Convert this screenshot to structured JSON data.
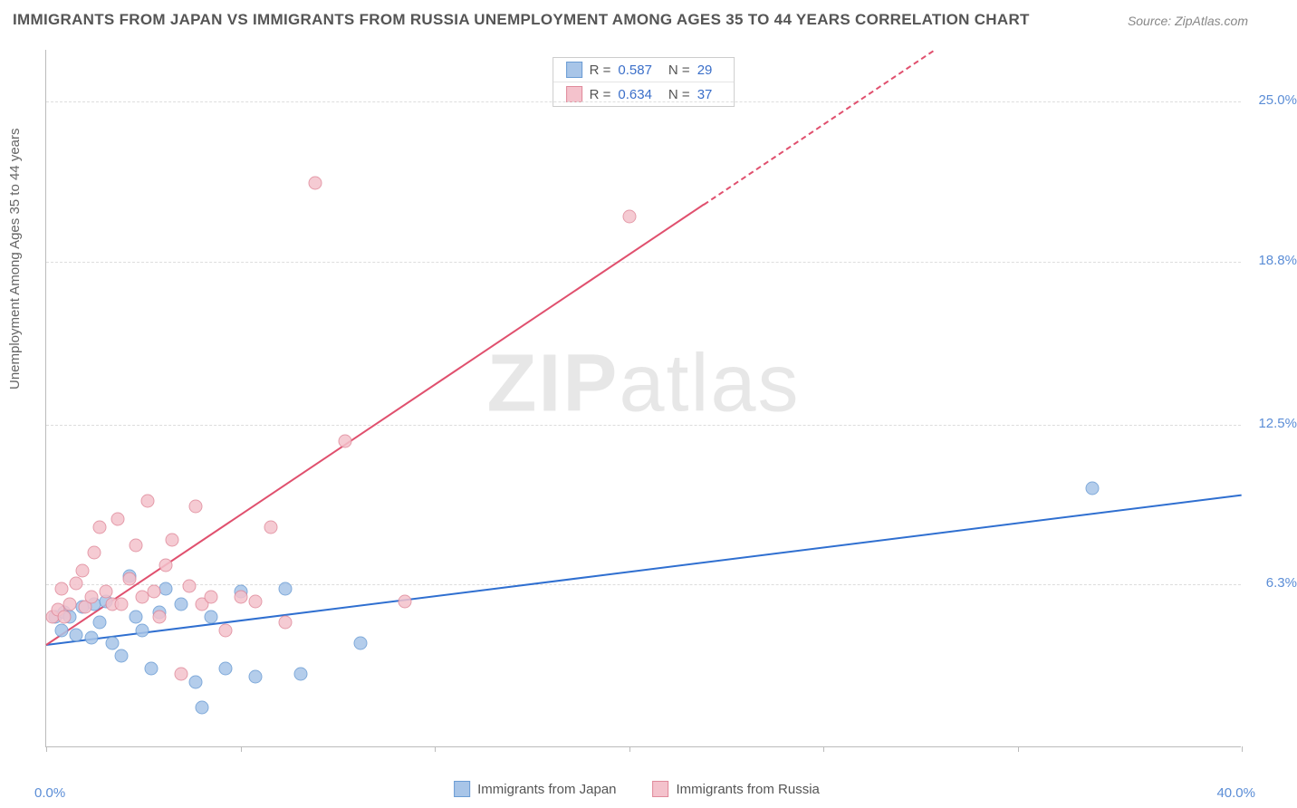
{
  "title": "IMMIGRANTS FROM JAPAN VS IMMIGRANTS FROM RUSSIA UNEMPLOYMENT AMONG AGES 35 TO 44 YEARS CORRELATION CHART",
  "source": "Source: ZipAtlas.com",
  "watermark_bold": "ZIP",
  "watermark_light": "atlas",
  "y_axis_label": "Unemployment Among Ages 35 to 44 years",
  "chart": {
    "type": "scatter",
    "xlim": [
      0,
      40
    ],
    "ylim": [
      0,
      27
    ],
    "x_min_label": "0.0%",
    "x_max_label": "40.0%",
    "x_ticks": [
      0,
      6.5,
      13,
      19.5,
      26,
      32.5,
      40
    ],
    "y_gridlines": [
      {
        "value": 6.3,
        "label": "6.3%"
      },
      {
        "value": 12.5,
        "label": "12.5%"
      },
      {
        "value": 18.8,
        "label": "18.8%"
      },
      {
        "value": 25.0,
        "label": "25.0%"
      }
    ],
    "grid_color": "#dddddd",
    "axis_color": "#bbbbbb",
    "background_color": "#ffffff",
    "series": [
      {
        "id": "japan",
        "label": "Immigrants from Japan",
        "fill_color": "#a8c5e8",
        "stroke_color": "#6a9cd4",
        "trend_color": "#2f6fd0",
        "R": "0.587",
        "N": "29",
        "trend": {
          "x1": 0,
          "y1": 4.0,
          "x2": 40,
          "y2": 9.8,
          "dashed_from_x": null
        },
        "points": [
          [
            0.3,
            5.0
          ],
          [
            0.5,
            4.5
          ],
          [
            0.6,
            5.2
          ],
          [
            0.8,
            5.0
          ],
          [
            1.0,
            4.3
          ],
          [
            1.2,
            5.4
          ],
          [
            1.5,
            4.2
          ],
          [
            1.6,
            5.5
          ],
          [
            1.8,
            4.8
          ],
          [
            2.0,
            5.6
          ],
          [
            2.2,
            4.0
          ],
          [
            2.5,
            3.5
          ],
          [
            2.8,
            6.6
          ],
          [
            3.0,
            5.0
          ],
          [
            3.2,
            4.5
          ],
          [
            3.5,
            3.0
          ],
          [
            3.8,
            5.2
          ],
          [
            4.0,
            6.1
          ],
          [
            4.5,
            5.5
          ],
          [
            5.0,
            2.5
          ],
          [
            5.2,
            1.5
          ],
          [
            5.5,
            5.0
          ],
          [
            6.0,
            3.0
          ],
          [
            6.5,
            6.0
          ],
          [
            7.0,
            2.7
          ],
          [
            8.0,
            6.1
          ],
          [
            8.5,
            2.8
          ],
          [
            10.5,
            4.0
          ],
          [
            35.0,
            10.0
          ]
        ]
      },
      {
        "id": "russia",
        "label": "Immigrants from Russia",
        "fill_color": "#f4c2cc",
        "stroke_color": "#e08a9b",
        "trend_color": "#e0506e",
        "R": "0.634",
        "N": "37",
        "trend": {
          "x1": 0,
          "y1": 4.0,
          "x2": 40,
          "y2": 35.0,
          "dashed_from_x": 22
        },
        "points": [
          [
            0.2,
            5.0
          ],
          [
            0.4,
            5.3
          ],
          [
            0.5,
            6.1
          ],
          [
            0.6,
            5.0
          ],
          [
            0.8,
            5.5
          ],
          [
            1.0,
            6.3
          ],
          [
            1.2,
            6.8
          ],
          [
            1.3,
            5.4
          ],
          [
            1.5,
            5.8
          ],
          [
            1.6,
            7.5
          ],
          [
            1.8,
            8.5
          ],
          [
            2.0,
            6.0
          ],
          [
            2.2,
            5.5
          ],
          [
            2.4,
            8.8
          ],
          [
            2.5,
            5.5
          ],
          [
            2.8,
            6.5
          ],
          [
            3.0,
            7.8
          ],
          [
            3.2,
            5.8
          ],
          [
            3.4,
            9.5
          ],
          [
            3.6,
            6.0
          ],
          [
            3.8,
            5.0
          ],
          [
            4.0,
            7.0
          ],
          [
            4.2,
            8.0
          ],
          [
            4.5,
            2.8
          ],
          [
            4.8,
            6.2
          ],
          [
            5.0,
            9.3
          ],
          [
            5.2,
            5.5
          ],
          [
            5.5,
            5.8
          ],
          [
            6.0,
            4.5
          ],
          [
            6.5,
            5.8
          ],
          [
            7.0,
            5.6
          ],
          [
            7.5,
            8.5
          ],
          [
            8.0,
            4.8
          ],
          [
            9.0,
            21.8
          ],
          [
            10.0,
            11.8
          ],
          [
            12.0,
            5.6
          ],
          [
            19.5,
            20.5
          ]
        ]
      }
    ]
  },
  "legend_stats_label_R": "R =",
  "legend_stats_label_N": "N ="
}
